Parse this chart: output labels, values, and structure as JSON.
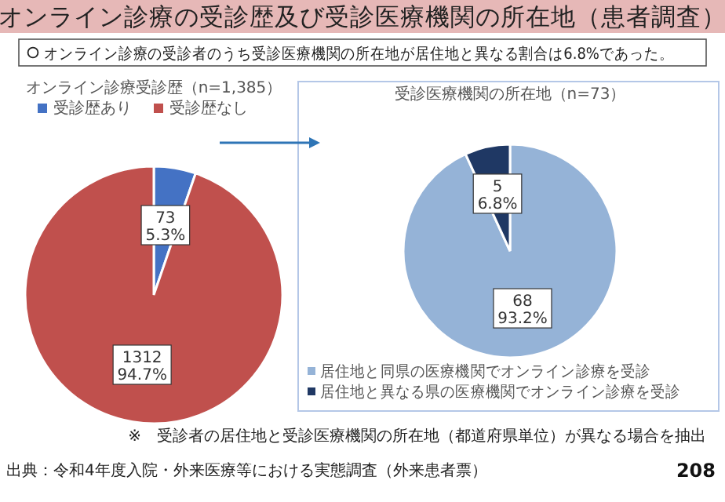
{
  "chart_data": [
    {
      "type": "other",
      "title": "オンライン診療の受診歴及び受診医療機関の所在地（患者調査）",
      "subtitle": "オンライン診療の受診者のうち受診医療機関の所在地が居住地と異なる割合は6.8%であった。",
      "annotations": [
        "※　受診者の居住地と受診医療機関の所在地（都道府県単位）が異なる場合を抽出",
        "出典：令和4年度入院・外来医療等における実態調査（外来患者票）",
        "208"
      ]
    },
    {
      "type": "pie",
      "title": "オンライン診療受診歴（n=1,385）",
      "categories": [
        "受診歴あり",
        "受診歴なし"
      ],
      "values": [
        73,
        1312
      ],
      "colors": [
        "#4472c4",
        "#c0504d"
      ],
      "value_labels": [
        "73\n5.3%",
        "1312\n94.7%"
      ],
      "legend": "top"
    },
    {
      "type": "pie",
      "title": "受診医療機関の所在地（n=73）",
      "categories": [
        "居住地と同県の医療機関でオンライン診療を受診",
        "居住地と異なる県の医療機関でオンライン診療を受診"
      ],
      "values": [
        68,
        5
      ],
      "colors": [
        "#95b3d7",
        "#1f3864"
      ],
      "value_labels": [
        "68\n93.2%",
        "5\n6.8%"
      ],
      "legend": "bottom"
    }
  ]
}
